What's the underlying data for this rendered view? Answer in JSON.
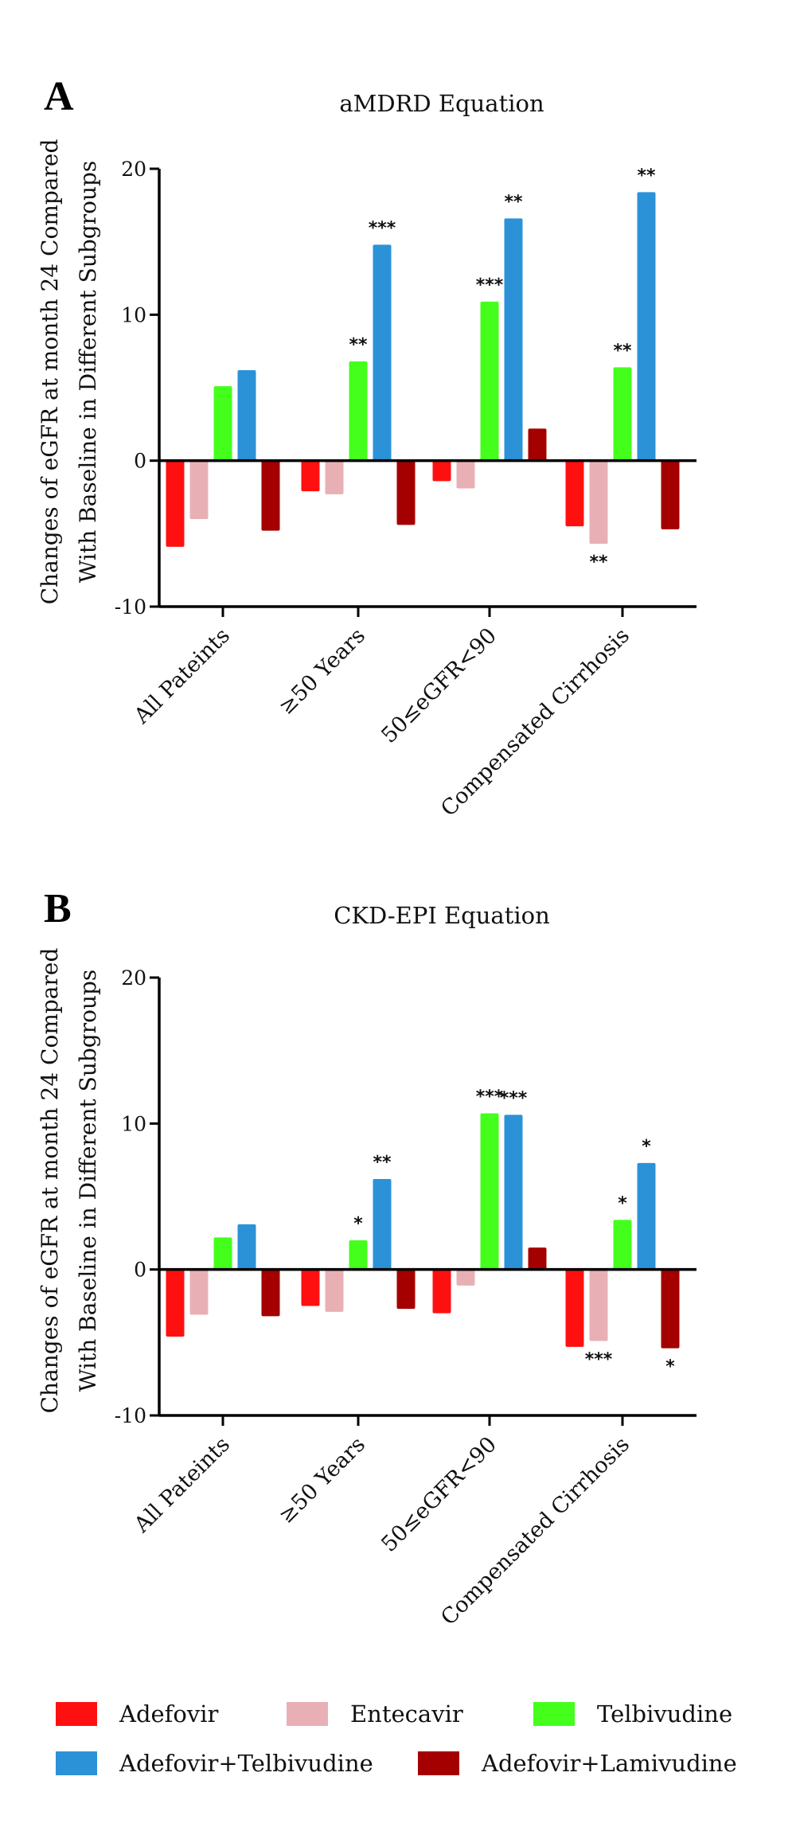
{
  "colors": {
    "Adefovir": "#ff1010",
    "Entecavir": "#e8b0b5",
    "Telbivudine": "#44ff1c",
    "Adefovir+Telbivudine": "#2b92d8",
    "Adefovir+Lamivudine": "#a50000"
  },
  "legend": {
    "items": [
      "Adefovir",
      "Entecavir",
      "Telbivudine",
      "Adefovir+Telbivudine",
      "Adefovir+Lamivudine"
    ]
  },
  "chart_data": [
    {
      "type": "bar",
      "panel": "A",
      "title": "aMDRD Equation",
      "ylabel": "Changes of eGFR at month 24 Compared With Baseline in Different Subgroups",
      "ylim": [
        -10,
        20
      ],
      "yticks": [
        -10,
        0,
        10,
        20
      ],
      "categories": [
        "All Pateints",
        "≥50 Years",
        "50≤eGFR<90",
        "Compensated Cirrhosis"
      ],
      "series": [
        {
          "name": "Adefovir",
          "values": [
            -5.9,
            -2.1,
            -1.4,
            -4.5
          ],
          "sig": [
            "",
            "",
            "",
            ""
          ]
        },
        {
          "name": "Entecavir",
          "values": [
            -4.0,
            -2.3,
            -1.9,
            -5.7
          ],
          "sig": [
            "",
            "",
            "",
            "**"
          ]
        },
        {
          "name": "Telbivudine",
          "values": [
            5.1,
            6.8,
            10.9,
            6.4
          ],
          "sig": [
            "",
            "**",
            "***",
            "**"
          ]
        },
        {
          "name": "Adefovir+Telbivudine",
          "values": [
            6.2,
            14.8,
            16.6,
            18.4
          ],
          "sig": [
            "",
            "***",
            "**",
            "**"
          ]
        },
        {
          "name": "Adefovir+Lamivudine",
          "values": [
            -4.8,
            -4.4,
            2.2,
            -4.7
          ],
          "sig": [
            "",
            "",
            "",
            ""
          ]
        }
      ]
    },
    {
      "type": "bar",
      "panel": "B",
      "title": "CKD-EPI Equation",
      "ylabel": "Changes of eGFR at month 24 Compared With Baseline in Different Subgroups",
      "ylim": [
        -10,
        20
      ],
      "yticks": [
        -10,
        0,
        10,
        20
      ],
      "categories": [
        "All Pateints",
        "≥50 Years",
        "50≤eGFR<90",
        "Compensated Cirrhosis"
      ],
      "series": [
        {
          "name": "Adefovir",
          "values": [
            -4.6,
            -2.5,
            -3.0,
            -5.3
          ],
          "sig": [
            "",
            "",
            "",
            ""
          ]
        },
        {
          "name": "Entecavir",
          "values": [
            -3.1,
            -2.9,
            -1.1,
            -4.9
          ],
          "sig": [
            "",
            "",
            "",
            "***"
          ]
        },
        {
          "name": "Telbivudine",
          "values": [
            2.2,
            2.0,
            10.7,
            3.4
          ],
          "sig": [
            "",
            "*",
            "***",
            "*"
          ]
        },
        {
          "name": "Adefovir+Telbivudine",
          "values": [
            3.1,
            6.2,
            10.6,
            7.3
          ],
          "sig": [
            "",
            "**",
            "***",
            "*"
          ]
        },
        {
          "name": "Adefovir+Lamivudine",
          "values": [
            -3.2,
            -2.7,
            1.5,
            -5.4
          ],
          "sig": [
            "",
            "",
            "",
            "*"
          ]
        }
      ]
    }
  ]
}
